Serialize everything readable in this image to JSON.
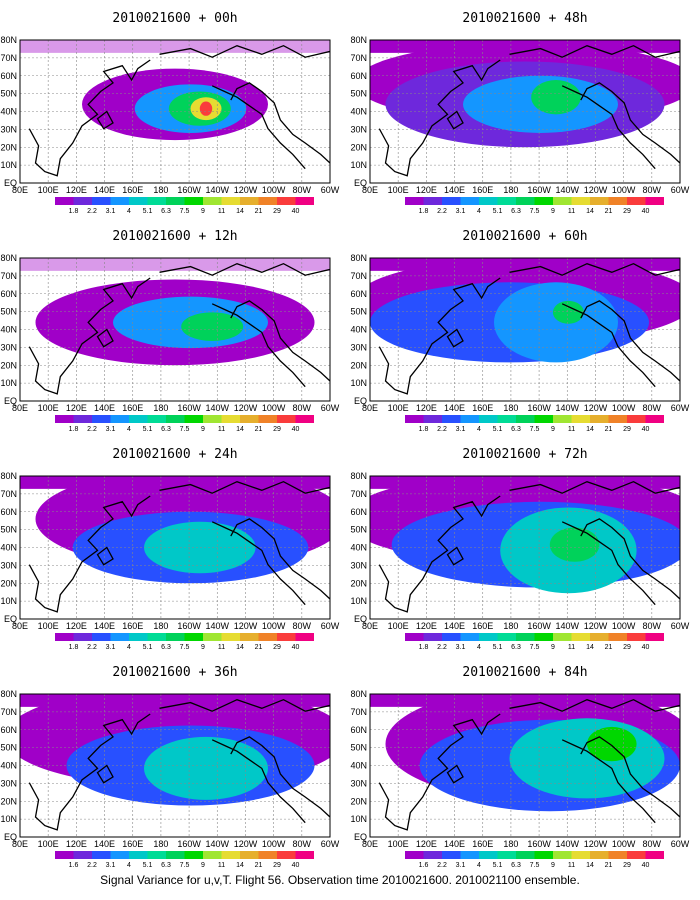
{
  "figure": {
    "caption": "Signal Variance for u,v,T. Flight 56. Observation time 2010021600. 2010021100 ensemble."
  },
  "axes": {
    "lon_labels": [
      "80E",
      "100E",
      "120E",
      "140E",
      "160E",
      "180",
      "160W",
      "140W",
      "120W",
      "100W",
      "80W",
      "60W"
    ],
    "lat_labels": [
      "EQ",
      "10N",
      "20N",
      "30N",
      "40N",
      "50N",
      "60N",
      "70N",
      "80N"
    ]
  },
  "legend": {
    "labels": [
      "1.8",
      "2.2",
      "3.1",
      "4",
      "5.1",
      "6.3",
      "7.5",
      "9",
      "11",
      "14",
      "21",
      "29",
      "40"
    ],
    "labels_last_panel": [
      "1.6",
      "2.2",
      "3.1",
      "4",
      "5.1",
      "6.3",
      "7.5",
      "9",
      "11",
      "14",
      "21",
      "29",
      "40"
    ],
    "colors": [
      "#a000c8",
      "#6e28dc",
      "#2850ff",
      "#1496ff",
      "#00c8c8",
      "#00dc96",
      "#00d25a",
      "#00d700",
      "#a0e632",
      "#e6dc32",
      "#e6af2d",
      "#f08228",
      "#fa3c3c",
      "#f00082"
    ]
  },
  "panels": [
    {
      "title": "2010021600 + 00h"
    },
    {
      "title": "2010021600 + 48h"
    },
    {
      "title": "2010021600 + 12h"
    },
    {
      "title": "2010021600 + 60h"
    },
    {
      "title": "2010021600 + 24h"
    },
    {
      "title": "2010021600 + 72h"
    },
    {
      "title": "2010021600 + 36h"
    },
    {
      "title": "2010021600 + 84h"
    }
  ]
}
